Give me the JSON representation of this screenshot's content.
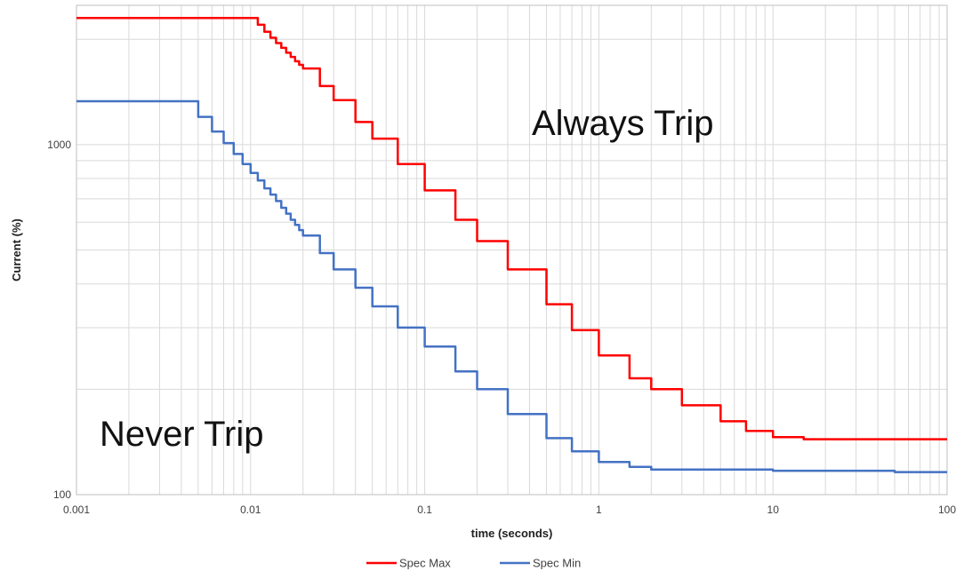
{
  "chart_data": {
    "type": "line",
    "title": "",
    "xlabel": "time (seconds)",
    "ylabel": "Current (%)",
    "x_scale": "log",
    "y_scale": "log",
    "xlim": [
      0.001,
      100
    ],
    "ylim": [
      100,
      2500
    ],
    "grid": true,
    "legend_position": "bottom",
    "x_ticks": [
      {
        "value": 0.001,
        "label": "0.001"
      },
      {
        "value": 0.01,
        "label": "0.01"
      },
      {
        "value": 0.1,
        "label": "0.1"
      },
      {
        "value": 1,
        "label": "1"
      },
      {
        "value": 10,
        "label": "10"
      },
      {
        "value": 100,
        "label": "100"
      }
    ],
    "y_ticks": [
      {
        "value": 100,
        "label": "100"
      },
      {
        "value": 1000,
        "label": "1000"
      }
    ],
    "annotations": [
      {
        "text": "Always Trip",
        "x": 0.7,
        "y": 1300
      },
      {
        "text": "Never Trip",
        "x": 0.0065,
        "y": 148
      }
    ],
    "series": [
      {
        "name": "Spec Max",
        "color": "#ff0000",
        "line_style": "step",
        "x": [
          0.001,
          0.0105,
          0.011,
          0.012,
          0.013,
          0.014,
          0.015,
          0.016,
          0.017,
          0.018,
          0.019,
          0.02,
          0.025,
          0.03,
          0.04,
          0.05,
          0.07,
          0.1,
          0.15,
          0.2,
          0.3,
          0.5,
          0.7,
          1,
          1.5,
          2,
          3,
          5,
          7,
          10,
          15,
          20,
          50,
          100
        ],
        "y": [
          2300,
          2300,
          2200,
          2100,
          2020,
          1950,
          1890,
          1830,
          1780,
          1730,
          1690,
          1650,
          1470,
          1340,
          1160,
          1040,
          880,
          740,
          610,
          530,
          440,
          350,
          295,
          250,
          215,
          200,
          180,
          162,
          152,
          146,
          144,
          144,
          144,
          144
        ]
      },
      {
        "name": "Spec Min",
        "color": "#4472c4",
        "line_style": "step",
        "x": [
          0.001,
          0.004,
          0.005,
          0.006,
          0.007,
          0.008,
          0.009,
          0.01,
          0.011,
          0.012,
          0.013,
          0.014,
          0.015,
          0.016,
          0.017,
          0.018,
          0.019,
          0.02,
          0.025,
          0.03,
          0.04,
          0.05,
          0.07,
          0.1,
          0.15,
          0.2,
          0.3,
          0.5,
          0.7,
          1,
          1.5,
          2,
          5,
          10,
          20,
          50,
          100
        ],
        "y": [
          1330,
          1330,
          1200,
          1090,
          1010,
          940,
          880,
          830,
          790,
          750,
          720,
          690,
          660,
          635,
          610,
          590,
          570,
          550,
          490,
          440,
          390,
          345,
          300,
          265,
          225,
          200,
          170,
          145,
          133,
          124,
          120,
          118,
          118,
          117,
          117,
          116,
          116
        ]
      }
    ]
  }
}
